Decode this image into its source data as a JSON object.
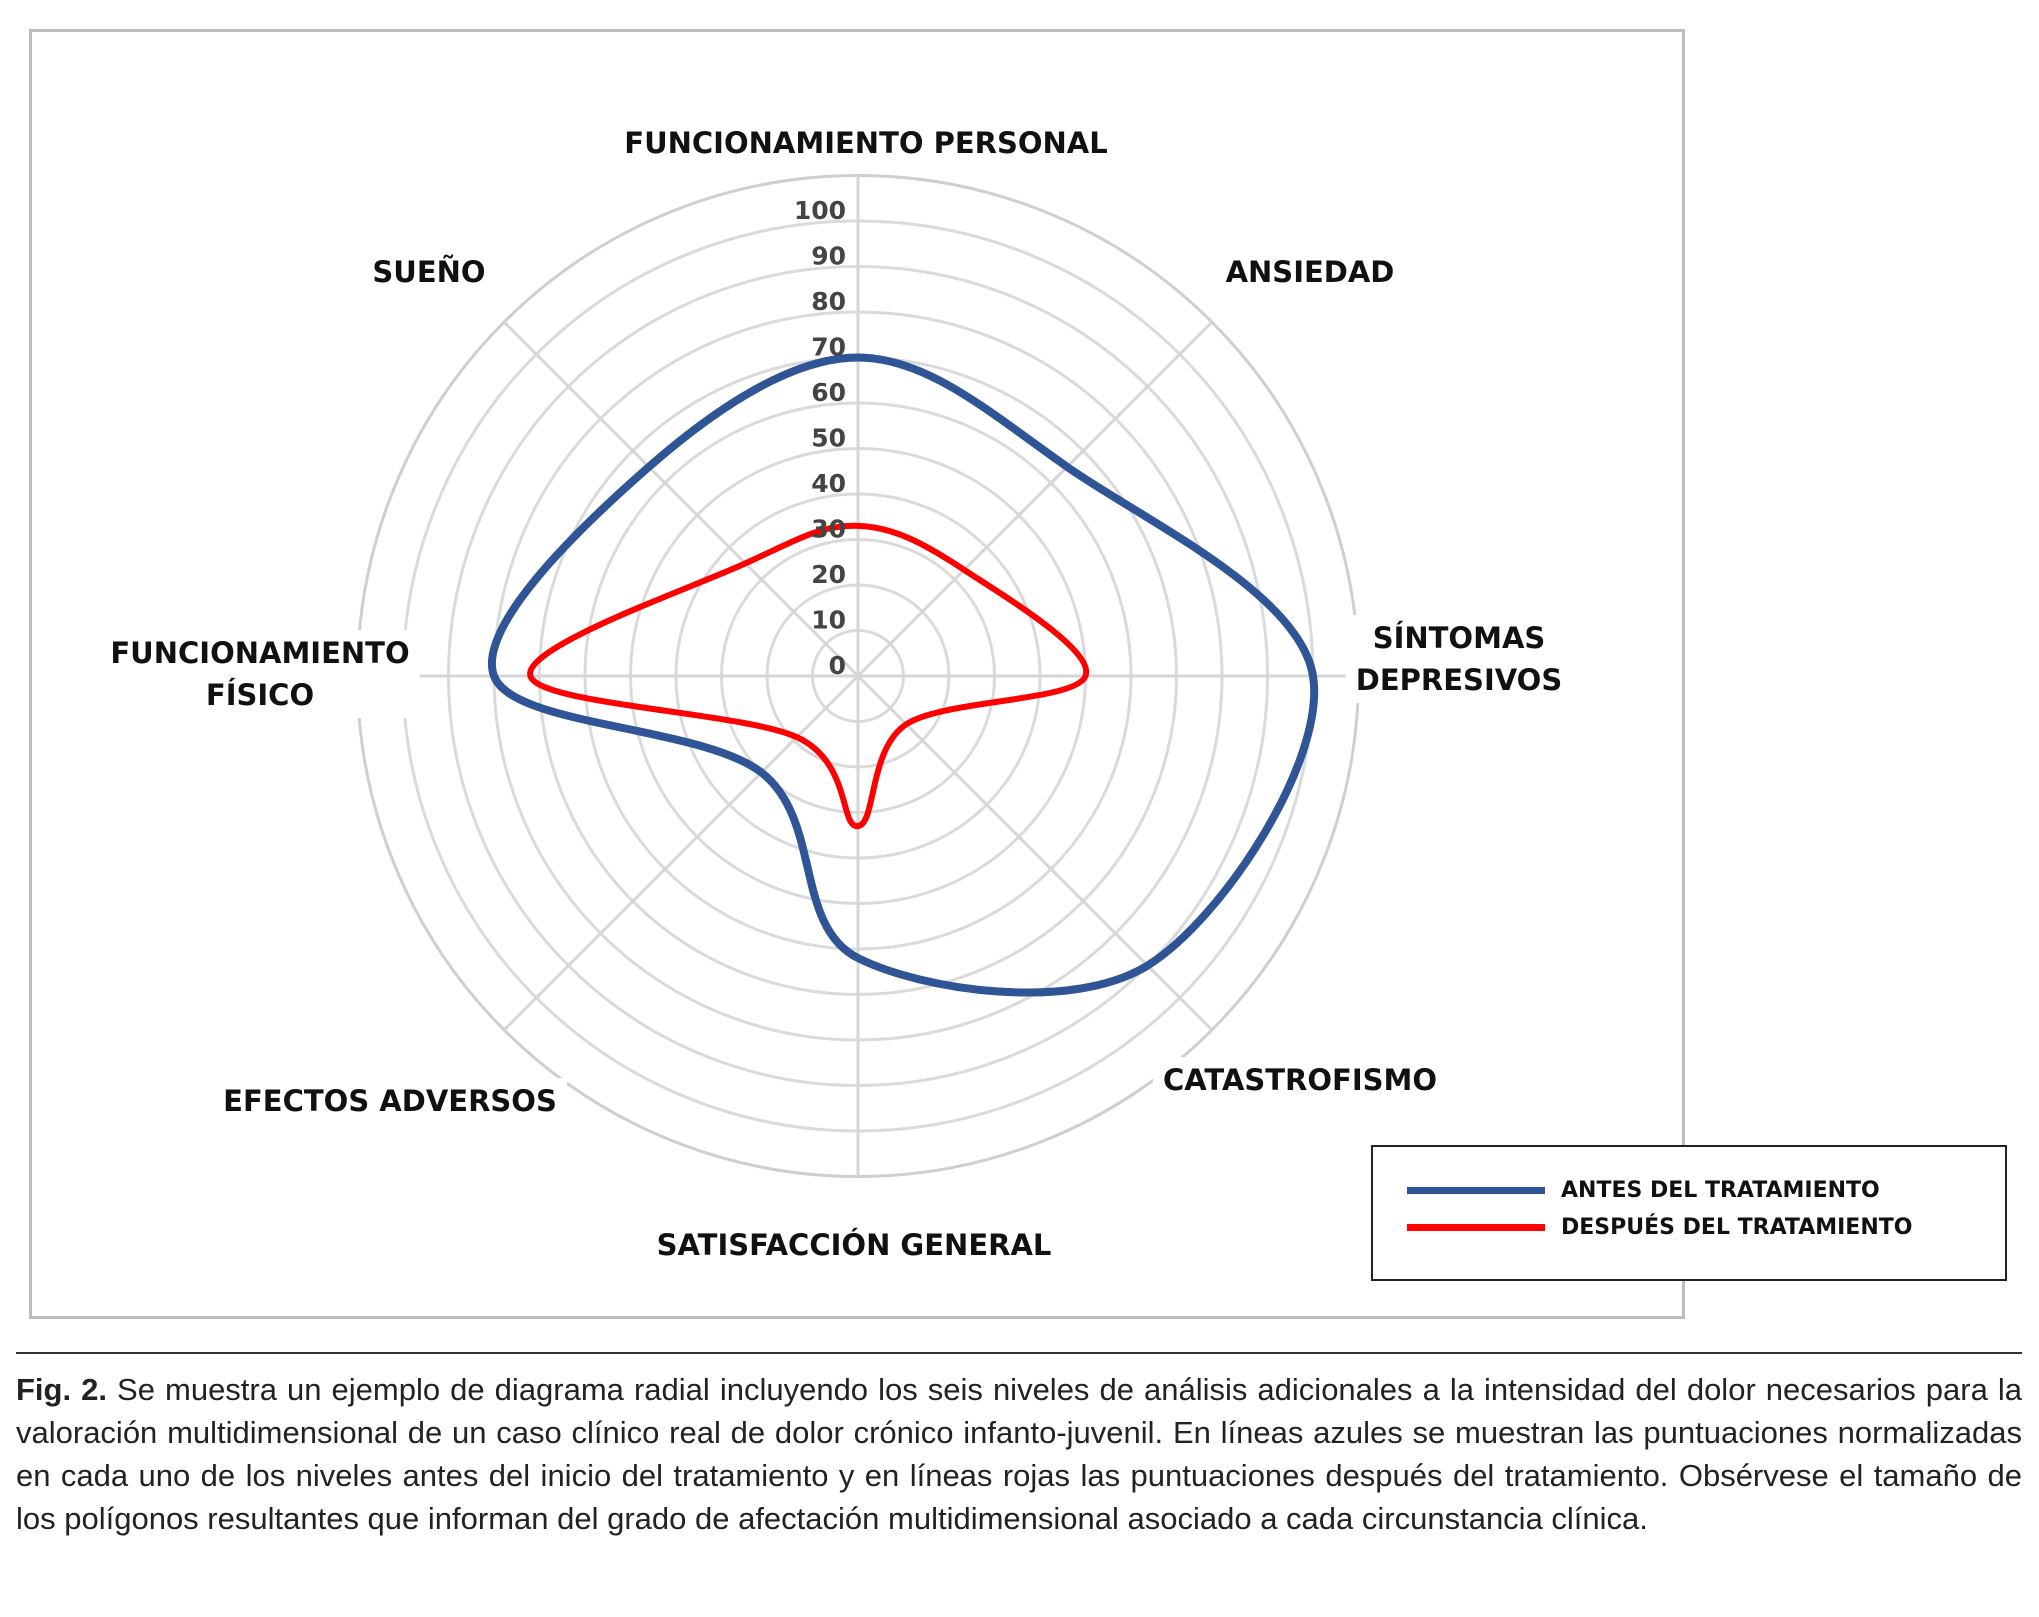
{
  "chart_data": {
    "type": "radar",
    "axes": [
      "FUNCIONAMIENTO PERSONAL",
      "ANSIEDAD",
      "SÍNTOMAS DEPRESIVOS",
      "CATASTROFISMO",
      "SATISFACCIÓN GENERAL",
      "EFECTOS ADVERSOS",
      "FUNCIONAMIENTO FÍSICO",
      "SUEÑO"
    ],
    "axis_label_lines": [
      [
        "FUNCIONAMIENTO PERSONAL"
      ],
      [
        "ANSIEDAD"
      ],
      [
        "SÍNTOMAS",
        "DEPRESIVOS"
      ],
      [
        "CATASTROFISMO"
      ],
      [
        "SATISFACCIÓN GENERAL"
      ],
      [
        "EFECTOS ADVERSOS"
      ],
      [
        "FUNCIONAMIENTO",
        "FÍSICO"
      ],
      [
        "SUEÑO"
      ]
    ],
    "ticks": [
      0,
      10,
      20,
      30,
      40,
      50,
      60,
      70,
      80,
      90,
      100
    ],
    "rlim": [
      0,
      100
    ],
    "grid": true,
    "smoothed": true,
    "legend_position": "bottom-right",
    "series": [
      {
        "name": "ANTES DEL TRATAMIENTO",
        "color": "#2f5597",
        "values": [
          70,
          65,
          100,
          90,
          62,
          30,
          80,
          65
        ]
      },
      {
        "name": "DESPUÉS DEL TRATAMIENTO",
        "color": "#ff0000",
        "values": [
          33,
          33,
          50,
          15,
          33,
          19,
          72,
          35
        ]
      }
    ]
  },
  "caption": {
    "label": "Fig. 2.",
    "text": " Se muestra un ejemplo de diagrama radial incluyendo los seis niveles de análisis adicionales a la intensidad del dolor necesarios para la valoración multidimensional de un caso clínico real de dolor crónico infanto-juvenil. En líneas azules se muestran las puntuaciones normalizadas en cada uno de los niveles antes del inicio del tratamiento y en líneas rojas las puntuaciones después del tratamiento. Obsérvese el tamaño de los polígonos resultantes que informan del grado de afectación multidimensional asociado a cada circunstancia clínica."
  }
}
